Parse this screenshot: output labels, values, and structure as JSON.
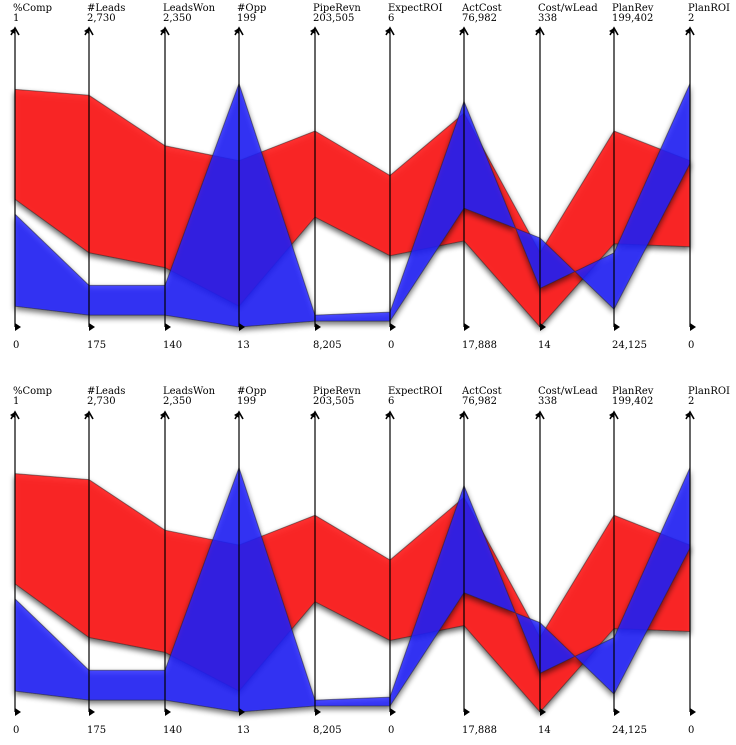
{
  "chart_data": {
    "type": "parallel-coordinates",
    "axes": [
      {
        "name": "%Comp",
        "max": "1",
        "min": "0"
      },
      {
        "name": "#Leads",
        "max": "2,730",
        "min": "175"
      },
      {
        "name": "LeadsWon",
        "max": "2,350",
        "min": "140"
      },
      {
        "name": "#Opp",
        "max": "199",
        "min": "13"
      },
      {
        "name": "PipeRevn",
        "max": "203,505",
        "min": "8,205"
      },
      {
        "name": "ExpectROI",
        "max": "6",
        "min": "0"
      },
      {
        "name": "ActCost",
        "max": "76,982",
        "min": "17,888"
      },
      {
        "name": "Cost/wLead",
        "max": "338",
        "min": "14"
      },
      {
        "name": "PlanRev",
        "max": "199,402",
        "min": "24,125"
      },
      {
        "name": "PlanROI",
        "max": "2",
        "min": "0"
      }
    ],
    "series": [
      {
        "color": "#ff2020",
        "band_top": [
          0.8,
          0.78,
          0.61,
          0.56,
          0.66,
          0.51,
          0.72,
          0.25,
          0.66,
          0.56
        ],
        "band_bottom": [
          0.43,
          0.25,
          0.2,
          0.07,
          0.37,
          0.24,
          0.29,
          0.0,
          0.28,
          0.27
        ]
      },
      {
        "color": "#2020ff",
        "band_top": [
          0.38,
          0.14,
          0.14,
          0.82,
          0.04,
          0.05,
          0.76,
          0.13,
          0.25,
          0.82
        ],
        "band_bottom": [
          0.07,
          0.04,
          0.04,
          0.0,
          0.02,
          0.02,
          0.4,
          0.3,
          0.06,
          0.55
        ]
      }
    ],
    "panels": 2
  }
}
